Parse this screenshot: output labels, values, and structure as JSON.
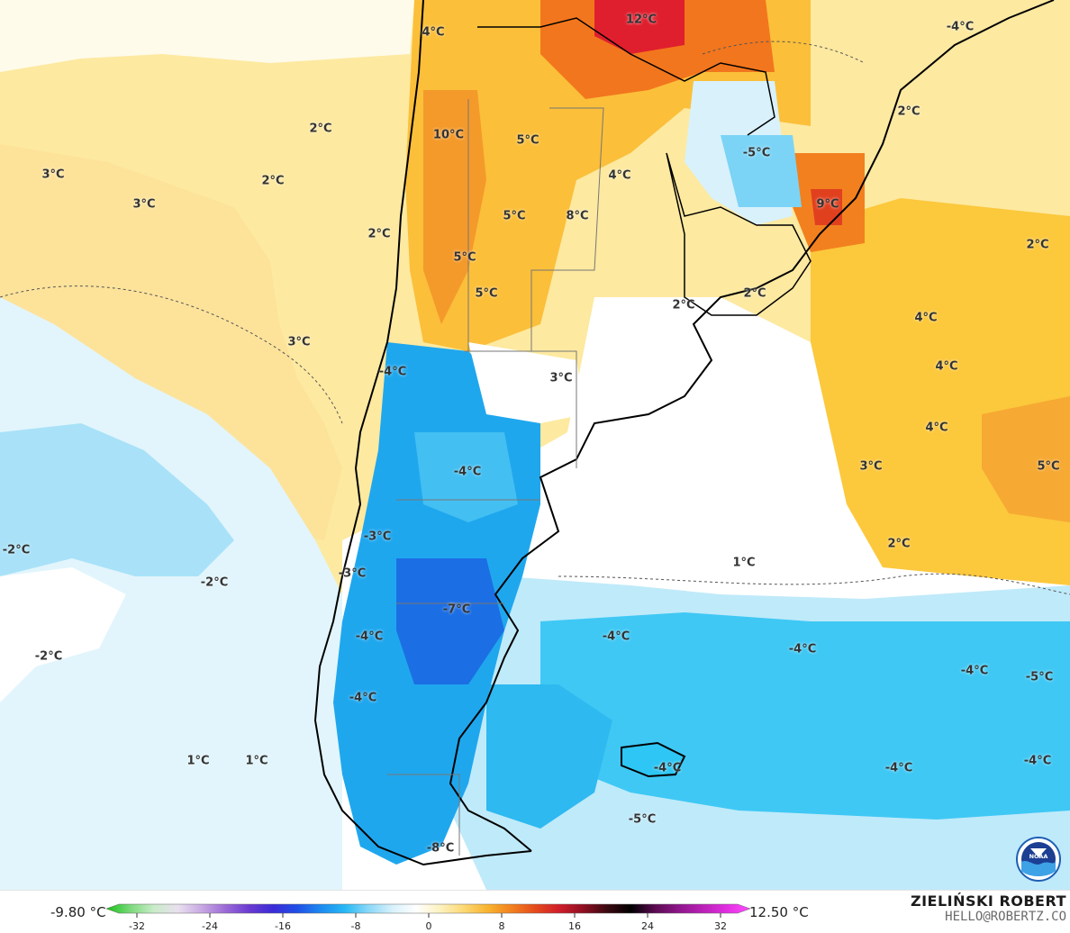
{
  "labels": [
    {
      "id": "l-12",
      "text": "12°C"
    },
    {
      "id": "l-4a",
      "text": "4°C"
    },
    {
      "id": "l-m4ne",
      "text": "-4°C"
    },
    {
      "id": "l-2ne",
      "text": "2°C"
    },
    {
      "id": "l-2a",
      "text": "2°C"
    },
    {
      "id": "l-10",
      "text": "10°C"
    },
    {
      "id": "l-5a",
      "text": "5°C"
    },
    {
      "id": "l-m5a",
      "text": "-5°C"
    },
    {
      "id": "l-3a",
      "text": "3°C"
    },
    {
      "id": "l-2b",
      "text": "2°C"
    },
    {
      "id": "l-3b",
      "text": "3°C"
    },
    {
      "id": "l-4b",
      "text": "4°C"
    },
    {
      "id": "l-9",
      "text": "9°C"
    },
    {
      "id": "l-5b",
      "text": "5°C"
    },
    {
      "id": "l-8",
      "text": "8°C"
    },
    {
      "id": "l-2c",
      "text": "2°C"
    },
    {
      "id": "l-2e",
      "text": "2°C"
    },
    {
      "id": "l-5c",
      "text": "5°C"
    },
    {
      "id": "l-5d",
      "text": "5°C"
    },
    {
      "id": "l-2f",
      "text": "2°C"
    },
    {
      "id": "l-2g",
      "text": "2°C"
    },
    {
      "id": "l-4c",
      "text": "4°C"
    },
    {
      "id": "l-3c",
      "text": "3°C"
    },
    {
      "id": "l-m4a",
      "text": "-4°C"
    },
    {
      "id": "l-4d",
      "text": "4°C"
    },
    {
      "id": "l-3d",
      "text": "3°C"
    },
    {
      "id": "l-4e",
      "text": "4°C"
    },
    {
      "id": "l-3e",
      "text": "3°C"
    },
    {
      "id": "l-5e",
      "text": "5°C"
    },
    {
      "id": "l-m4b",
      "text": "-4°C"
    },
    {
      "id": "l-m2a",
      "text": "-2°C"
    },
    {
      "id": "l-m3a",
      "text": "-3°C"
    },
    {
      "id": "l-m2b",
      "text": "-2°C"
    },
    {
      "id": "l-m3b",
      "text": "-3°C"
    },
    {
      "id": "l-2h",
      "text": "2°C"
    },
    {
      "id": "l-1a",
      "text": "1°C"
    },
    {
      "id": "l-m7",
      "text": "-7°C"
    },
    {
      "id": "l-m4c",
      "text": "-4°C"
    },
    {
      "id": "l-m4d",
      "text": "-4°C"
    },
    {
      "id": "l-m4e",
      "text": "-4°C"
    },
    {
      "id": "l-m2c",
      "text": "-2°C"
    },
    {
      "id": "l-m4f",
      "text": "-4°C"
    },
    {
      "id": "l-m5b",
      "text": "-5°C"
    },
    {
      "id": "l-m4g",
      "text": "-4°C"
    },
    {
      "id": "l-m4h",
      "text": "-4°C"
    },
    {
      "id": "l-m4i",
      "text": "-4°C"
    },
    {
      "id": "l-m4j",
      "text": "-4°C"
    },
    {
      "id": "l-1b",
      "text": "1°C"
    },
    {
      "id": "l-1c",
      "text": "1°C"
    },
    {
      "id": "l-m5c",
      "text": "-5°C"
    },
    {
      "id": "l-m8",
      "text": "-8°C"
    }
  ],
  "legend": {
    "min_label": "-9.80 °C",
    "max_label": "12.50 °C",
    "ticks": [
      "-32",
      "-24",
      "-16",
      "-8",
      "0",
      "8",
      "16",
      "24",
      "32"
    ],
    "colors": [
      "#18c018",
      "#7ad97a",
      "#c9ecc9",
      "#e9e0ee",
      "#c8a8e2",
      "#9b6ad6",
      "#6a3ad0",
      "#3a2bd6",
      "#1f4fe6",
      "#1d8af0",
      "#27b8f4",
      "#8ad8f8",
      "#d8f1fb",
      "#ffffff",
      "#fdf2bf",
      "#fbd873",
      "#f8b32f",
      "#f2801f",
      "#e44a1c",
      "#cf1d2a",
      "#8e0f22",
      "#3a0810",
      "#000000",
      "#5a0a50",
      "#8d168a",
      "#b921b6",
      "#e02ee0",
      "#ff4cff"
    ]
  },
  "branding": {
    "author": "ZIELIŃSKI ROBERT",
    "email": "HELLO@ROBERTZ.CO",
    "logo_text": "NOAA"
  },
  "palette": {
    "ocean_cold": "#2ec6f4",
    "ocean_cool": "#aee6f8",
    "warm": "#fdd26b",
    "hot": "#f07a1c",
    "very_hot": "#e22838"
  }
}
